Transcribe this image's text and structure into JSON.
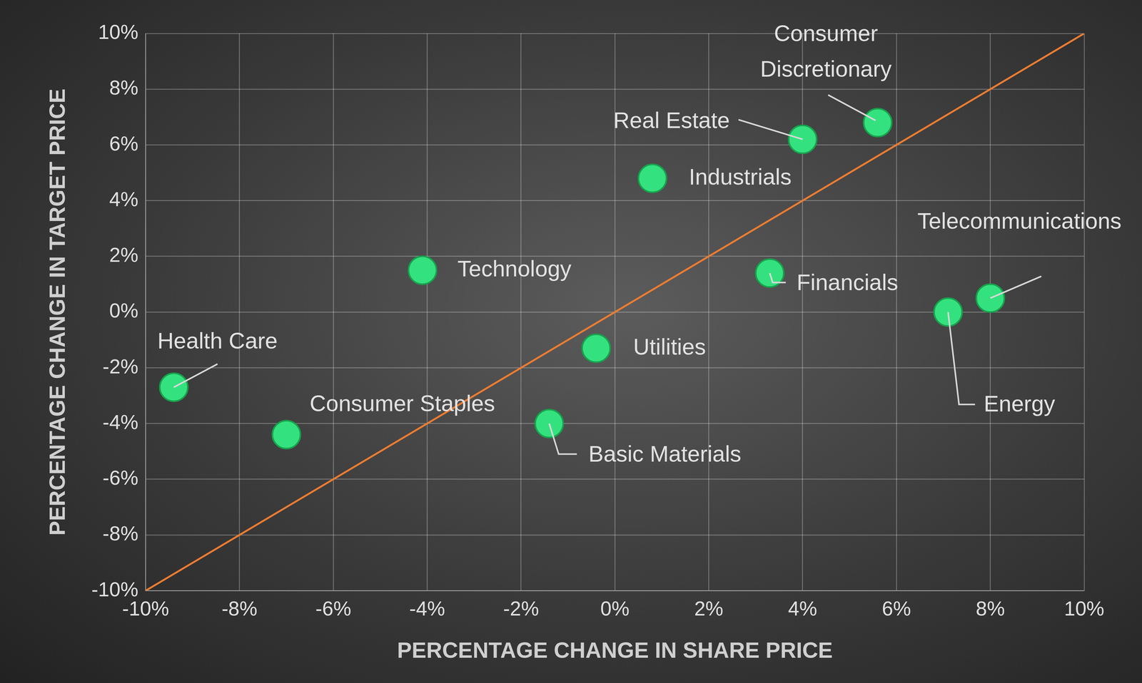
{
  "chart_data": {
    "type": "scatter",
    "x_label": "PERCENTAGE CHANGE IN SHARE PRICE",
    "y_label": "PERCENTAGE CHANGE IN TARGET PRICE",
    "labels": [
      "Consumer Discretionary",
      "Real Estate",
      "Industrials",
      "Technology",
      "Financials",
      "Telecommunications",
      "Energy",
      "Utilities",
      "Health Care",
      "Consumer Staples",
      "Basic Materials"
    ],
    "x": [
      5.6,
      4.0,
      0.8,
      -4.1,
      3.3,
      8.0,
      7.1,
      -0.4,
      -9.4,
      -7.0,
      -1.4
    ],
    "y": [
      6.8,
      6.2,
      4.8,
      1.5,
      1.4,
      0.5,
      0.0,
      -1.3,
      -2.7,
      -4.4,
      -4.0
    ],
    "color": "#33e27f",
    "marker": "circle",
    "reference_line": {
      "x": [
        -10,
        10
      ],
      "y": [
        -10,
        10
      ],
      "color": "#ed7d31"
    },
    "xlim": [
      -10,
      10
    ],
    "ylim": [
      -10,
      10
    ],
    "xticks": [
      {
        "value": -10,
        "label": "-10%"
      },
      {
        "value": -8,
        "label": "-8%"
      },
      {
        "value": -6,
        "label": "-6%"
      },
      {
        "value": -4,
        "label": "-4%"
      },
      {
        "value": -2,
        "label": "-2%"
      },
      {
        "value": 0,
        "label": "0%"
      },
      {
        "value": 2,
        "label": "2%"
      },
      {
        "value": 4,
        "label": "4%"
      },
      {
        "value": 6,
        "label": "6%"
      },
      {
        "value": 8,
        "label": "8%"
      },
      {
        "value": 10,
        "label": "10%"
      }
    ],
    "yticks": [
      {
        "value": -10,
        "label": "-10%"
      },
      {
        "value": -8,
        "label": "-8%"
      },
      {
        "value": -6,
        "label": "-6%"
      },
      {
        "value": -4,
        "label": "-4%"
      },
      {
        "value": -2,
        "label": "-2%"
      },
      {
        "value": 0,
        "label": "0%"
      },
      {
        "value": 2,
        "label": "2%"
      },
      {
        "value": 4,
        "label": "4%"
      },
      {
        "value": 6,
        "label": "6%"
      },
      {
        "value": 8,
        "label": "8%"
      },
      {
        "value": 10,
        "label": "10%"
      }
    ],
    "grid": true
  }
}
